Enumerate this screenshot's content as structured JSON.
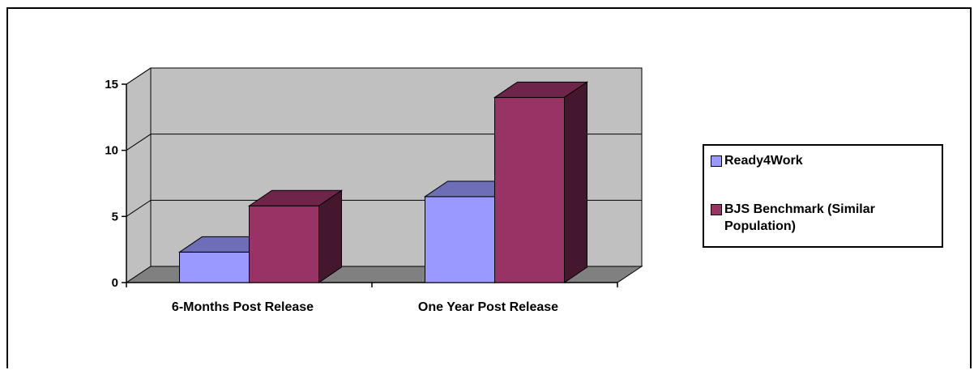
{
  "chart_data": {
    "type": "bar",
    "title": "",
    "xlabel": "",
    "ylabel": "",
    "categories": [
      "6-Months Post Release",
      "One Year Post Release"
    ],
    "series": [
      {
        "name": "Ready4Work",
        "values": [
          2.3,
          6.5
        ],
        "color": "#9999ff"
      },
      {
        "name": "BJS Benchmark (Similar Population)",
        "values": [
          5.8,
          14.0
        ],
        "color": "#993366"
      }
    ],
    "ylim": [
      0,
      15
    ],
    "yticks": [
      "0",
      "5",
      "10",
      "15"
    ],
    "grid": true,
    "legend_position": "right",
    "style": "3d-clustered-column",
    "wall_color": "#c0c0c0",
    "floor_color": "#808080"
  }
}
